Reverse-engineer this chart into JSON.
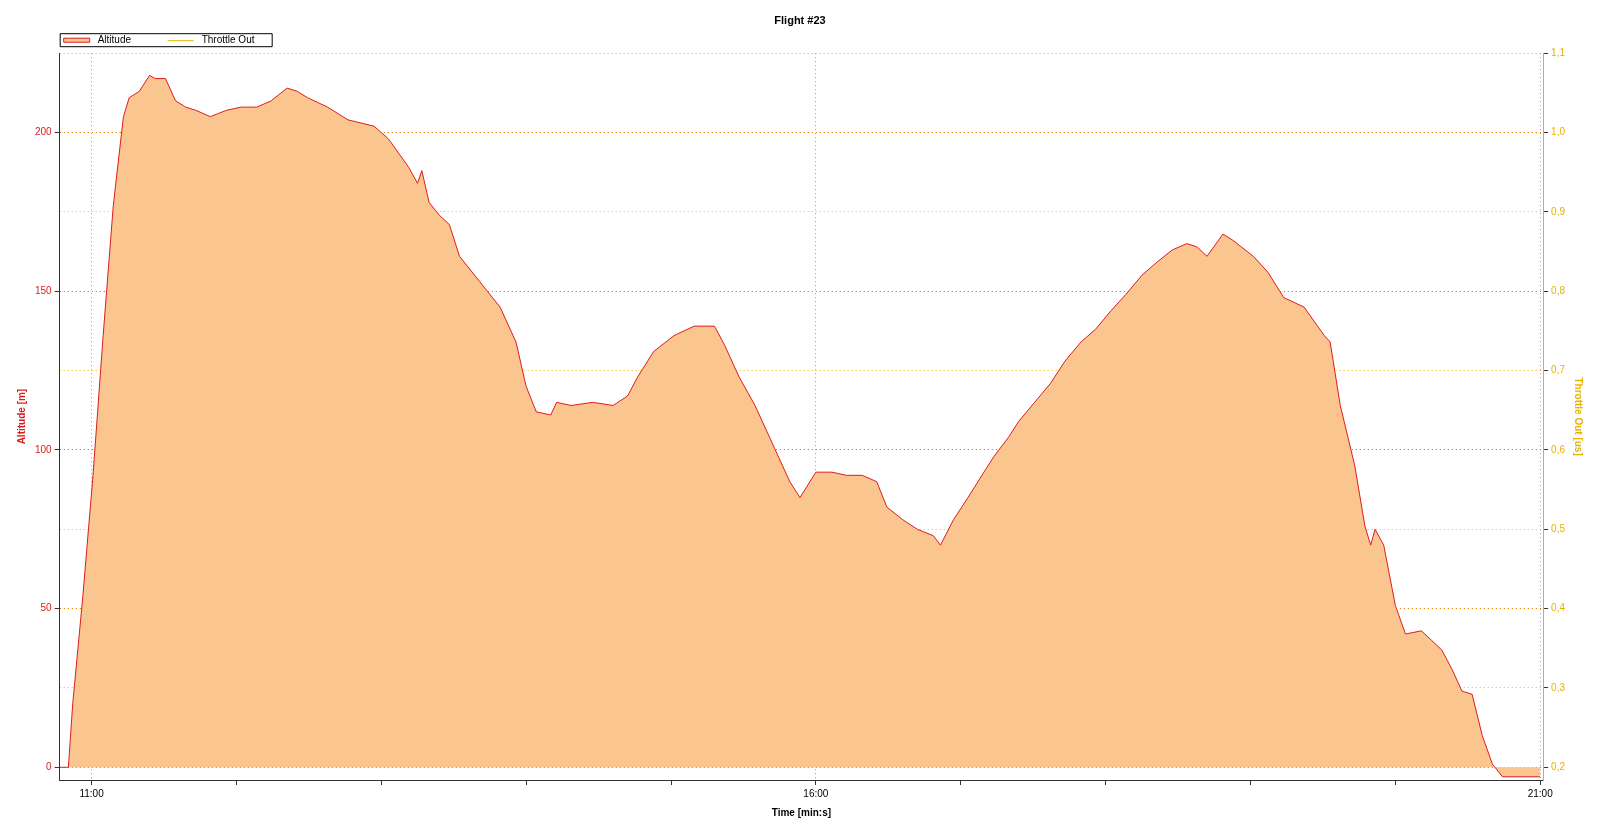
{
  "chart_data": {
    "type": "area",
    "title": "Flight #23",
    "xlabel": "Time [min:s]",
    "ylabel": "Altitude [m]",
    "y2label": "Throttle Out [us]",
    "x": [
      10.78,
      10.84,
      10.87,
      10.94,
      11.01,
      11.08,
      11.15,
      11.22,
      11.26,
      11.33,
      11.4,
      11.44,
      11.51,
      11.58,
      11.65,
      11.72,
      11.82,
      11.93,
      12.03,
      12.14,
      12.24,
      12.35,
      12.42,
      12.49,
      12.63,
      12.77,
      12.95,
      13.05,
      13.19,
      13.25,
      13.28,
      13.33,
      13.4,
      13.47,
      13.54,
      13.68,
      13.82,
      13.93,
      14.0,
      14.07,
      14.17,
      14.21,
      14.31,
      14.46,
      14.6,
      14.7,
      14.77,
      14.88,
      15.02,
      15.16,
      15.3,
      15.37,
      15.47,
      15.58,
      15.72,
      15.82,
      15.89,
      16.0,
      16.11,
      16.21,
      16.32,
      16.42,
      16.49,
      16.6,
      16.7,
      16.81,
      16.86,
      16.95,
      17.05,
      17.16,
      17.23,
      17.33,
      17.4,
      17.51,
      17.62,
      17.72,
      17.83,
      17.93,
      18.04,
      18.14,
      18.25,
      18.35,
      18.46,
      18.56,
      18.63,
      18.7,
      18.81,
      18.88,
      19.02,
      19.12,
      19.23,
      19.37,
      19.51,
      19.55,
      19.62,
      19.72,
      19.79,
      19.83,
      19.86,
      19.92,
      20.0,
      20.07,
      20.18,
      20.25,
      20.32,
      20.39,
      20.46,
      20.53,
      20.6,
      20.67,
      20.74,
      21.0
    ],
    "series": [
      {
        "name": "Altitude",
        "color": "#fbc590",
        "values": [
          0,
          0,
          20,
          54,
          92,
          136,
          177,
          205,
          211,
          213,
          218,
          217,
          217,
          210,
          208,
          207,
          205,
          207,
          208,
          208,
          210,
          214,
          213,
          211,
          208,
          204,
          202,
          198,
          189,
          184,
          188,
          178,
          174,
          171,
          161,
          153,
          145,
          134,
          120,
          112,
          111,
          115,
          114,
          115,
          114,
          117,
          123,
          131,
          136,
          139,
          139,
          133,
          123,
          114,
          100,
          90,
          85,
          93,
          93,
          92,
          92,
          90,
          82,
          78,
          75,
          73,
          70,
          78,
          85,
          93,
          98,
          104,
          109,
          115,
          121,
          128,
          134,
          138,
          144,
          149,
          155,
          159,
          163,
          165,
          164,
          161,
          168,
          166,
          161,
          156,
          148,
          145,
          136,
          134,
          114,
          95,
          76,
          70,
          75,
          70,
          51,
          42,
          43,
          40,
          37,
          31,
          24,
          23,
          10,
          1,
          -3,
          -3
        ]
      },
      {
        "name": "Throttle Out",
        "color": "#e8b100",
        "type": "line",
        "axis": "y2",
        "values": [
          null,
          null,
          null,
          null,
          null,
          null,
          null,
          null,
          null,
          null,
          null,
          null,
          null,
          null,
          null,
          null,
          null,
          null,
          null,
          null,
          null,
          null,
          null,
          null,
          null,
          null,
          null,
          null,
          null,
          null,
          null,
          null,
          null,
          null,
          null,
          null,
          null,
          null,
          null,
          null,
          null,
          null,
          null,
          null,
          null,
          null,
          null,
          null,
          null,
          null,
          null,
          null,
          null,
          null,
          null,
          null,
          null,
          null,
          null,
          null,
          null,
          null,
          null,
          null,
          null,
          null,
          null,
          null,
          null,
          null,
          null,
          null,
          null,
          null,
          null,
          null,
          null,
          null,
          null,
          null,
          null,
          null,
          null,
          null,
          null,
          null,
          null,
          null,
          null,
          null,
          null,
          null,
          null,
          null,
          null,
          null,
          null,
          null,
          null,
          null,
          null,
          null,
          null,
          null,
          null,
          null,
          null,
          null,
          null,
          null,
          null,
          null
        ]
      }
    ],
    "xlim": [
      10.78,
      21.02
    ],
    "xticks": [
      {
        "value": 11,
        "label": "11:00"
      },
      {
        "value": 12,
        "label": null
      },
      {
        "value": 13,
        "label": null
      },
      {
        "value": 14,
        "label": null
      },
      {
        "value": 15,
        "label": null
      },
      {
        "value": 16,
        "label": "16:00"
      },
      {
        "value": 17,
        "label": null
      },
      {
        "value": 18,
        "label": null
      },
      {
        "value": 19,
        "label": null
      },
      {
        "value": 20,
        "label": null
      },
      {
        "value": 21,
        "label": "21:00"
      }
    ],
    "ylim": [
      -4,
      225
    ],
    "yticks": [
      0,
      50,
      100,
      150,
      200
    ],
    "y2lim": [
      0.184,
      1.1
    ],
    "y2ticks": [
      {
        "value": 0.2,
        "label": "0,2"
      },
      {
        "value": 0.3,
        "label": "0,3"
      },
      {
        "value": 0.4,
        "label": "0,4"
      },
      {
        "value": 0.5,
        "label": "0,5"
      },
      {
        "value": 0.6,
        "label": "0,6"
      },
      {
        "value": 0.7,
        "label": "0,7"
      },
      {
        "value": 0.8,
        "label": "0,8"
      },
      {
        "value": 0.9,
        "label": "0,9"
      },
      {
        "value": 1.0,
        "label": "1,0"
      },
      {
        "value": 1.1,
        "label": "1,1"
      }
    ],
    "grid": true,
    "legend": "top left"
  }
}
